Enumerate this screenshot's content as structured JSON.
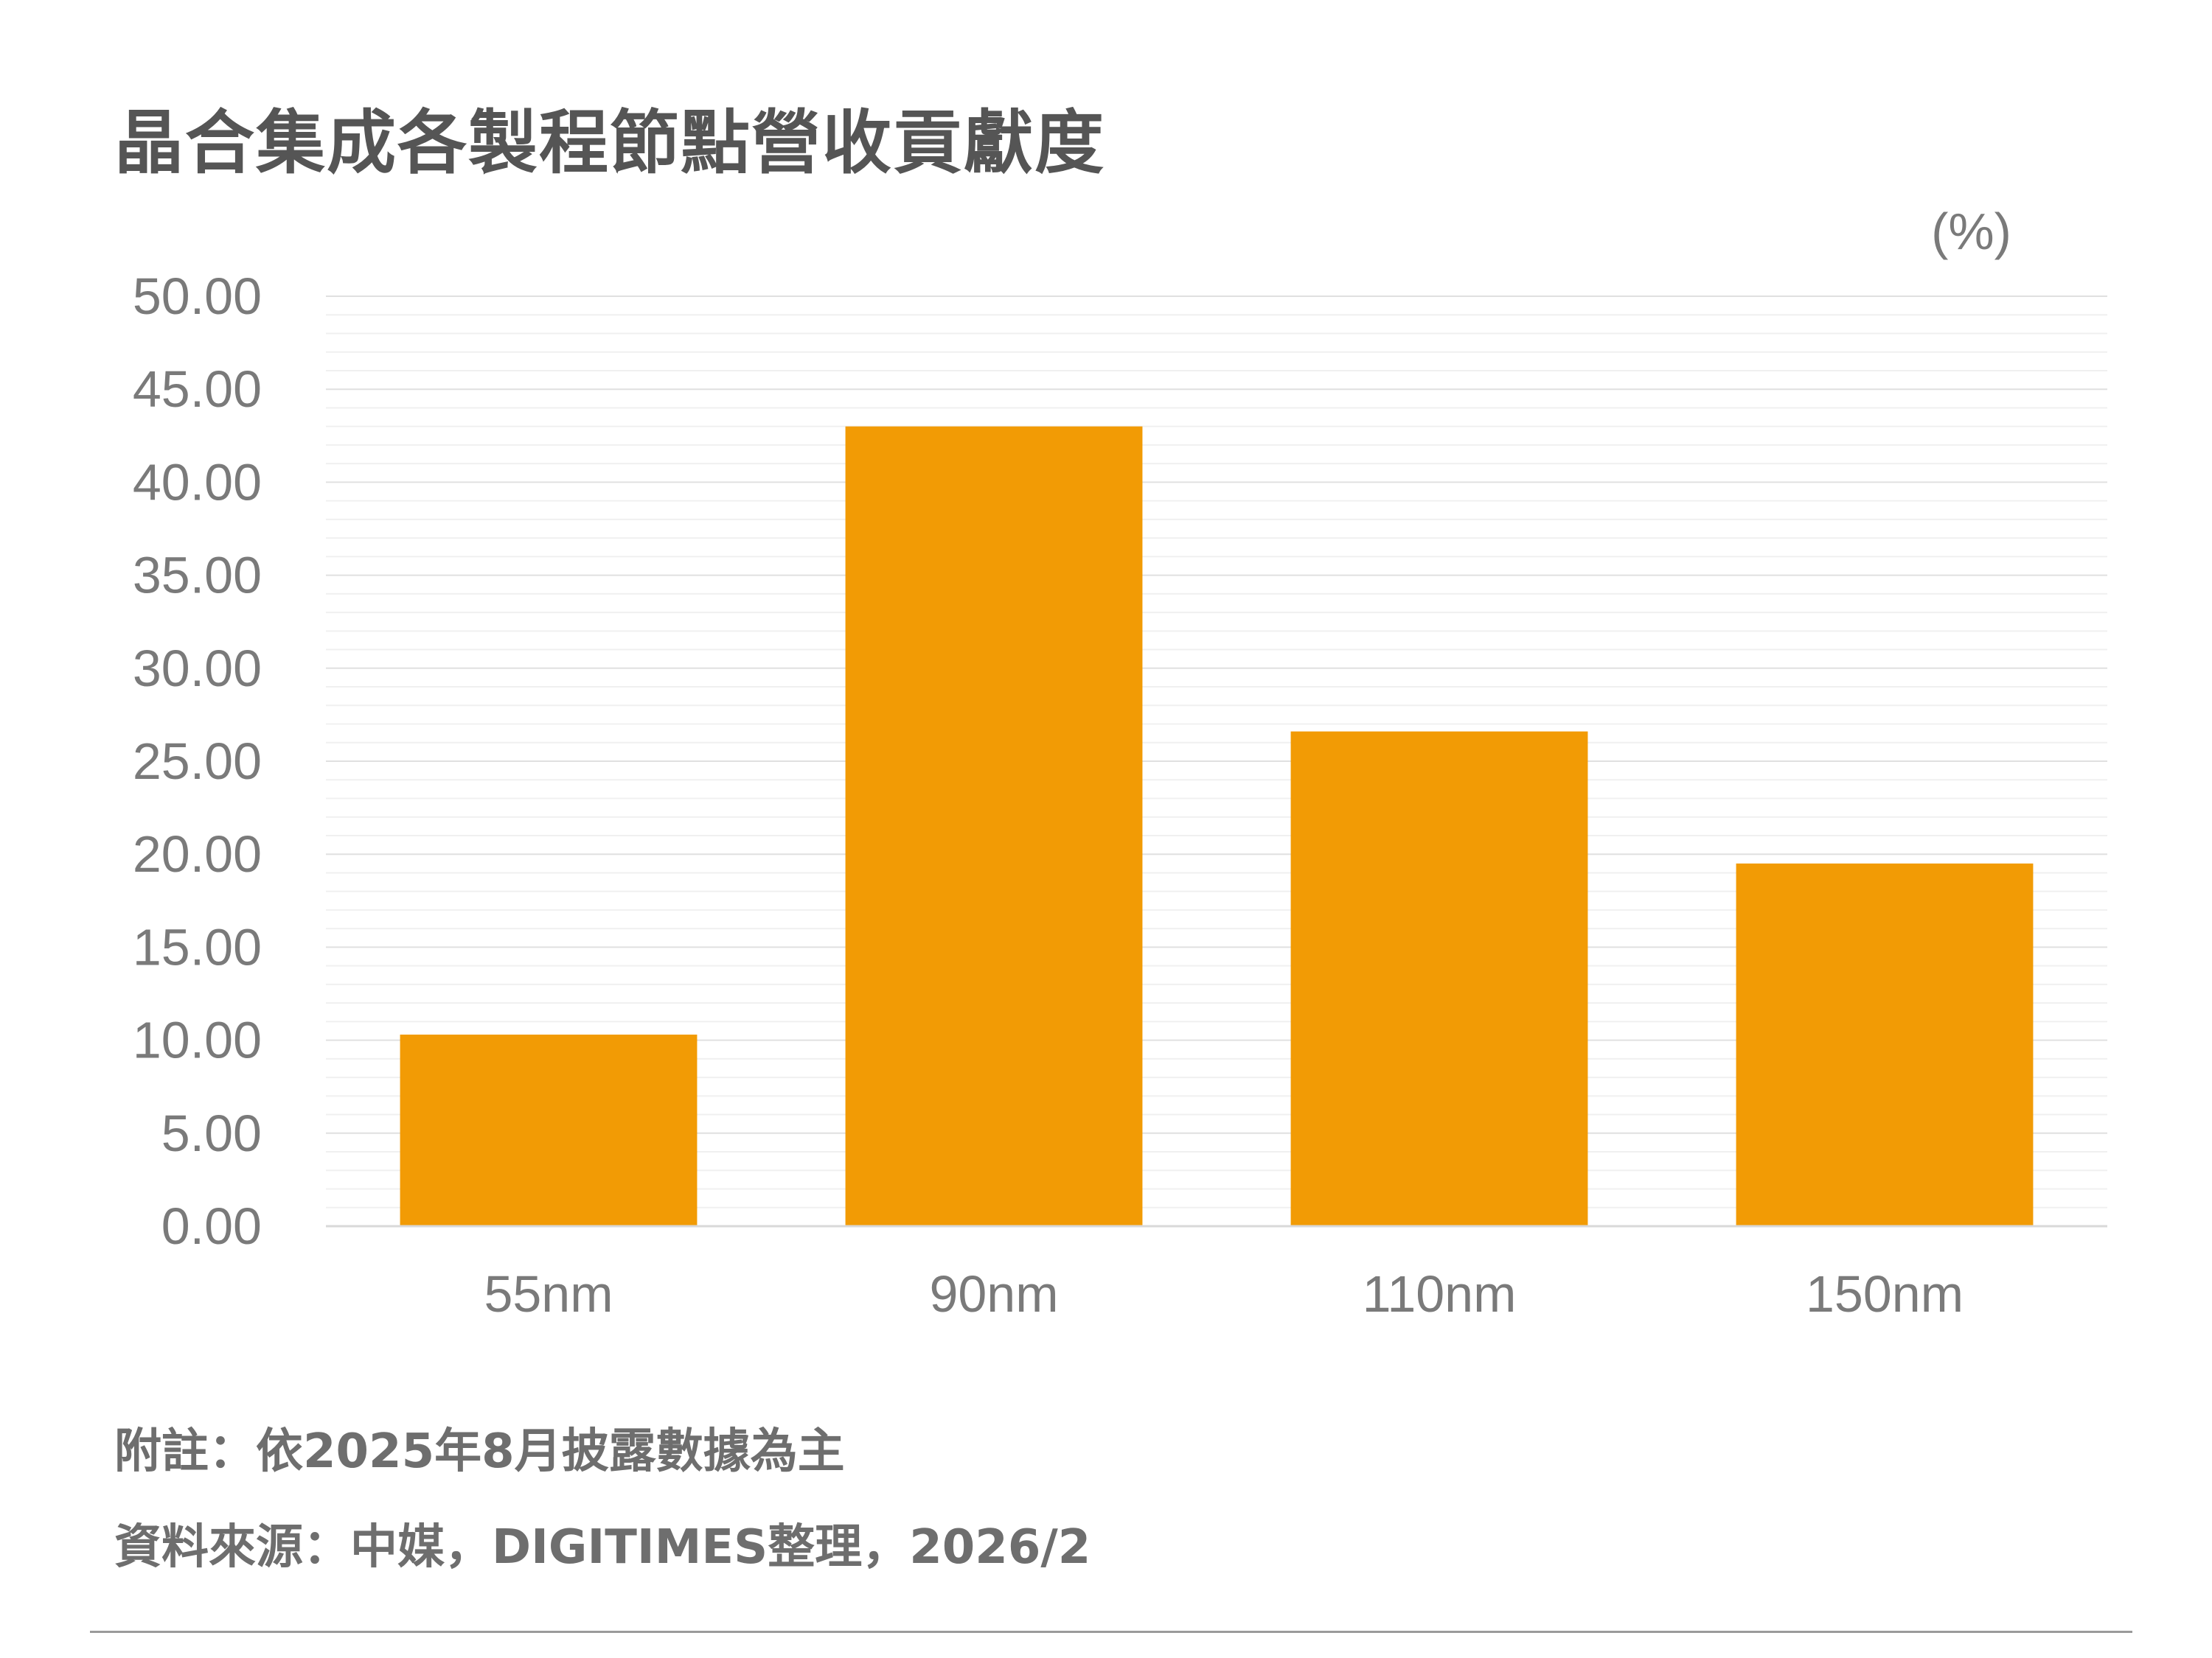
{
  "title": "晶合集成各製程節點營收貢獻度",
  "unit_label": "(%)",
  "notes": {
    "note": "附註：依2025年8月披露數據為主",
    "source": "資料來源：中媒，DIGITIMES整理，2026/2"
  },
  "colors": {
    "bar": "#F29B05",
    "gridline": "#e6e6e6",
    "axis": "#d9d9d9",
    "text": "#7a7a7a",
    "title": "#555555"
  },
  "chart_data": {
    "type": "bar",
    "categories": [
      "55nm",
      "90nm",
      "110nm",
      "150nm"
    ],
    "values": [
      10.3,
      43.0,
      26.6,
      19.5
    ],
    "ylim": [
      0,
      50
    ],
    "yticks": [
      "0.00",
      "5.00",
      "10.00",
      "15.00",
      "20.00",
      "25.00",
      "30.00",
      "35.00",
      "40.00",
      "45.00",
      "50.00"
    ],
    "ylabel": "(%)",
    "xlabel": "",
    "grid": true,
    "legend": "none"
  }
}
